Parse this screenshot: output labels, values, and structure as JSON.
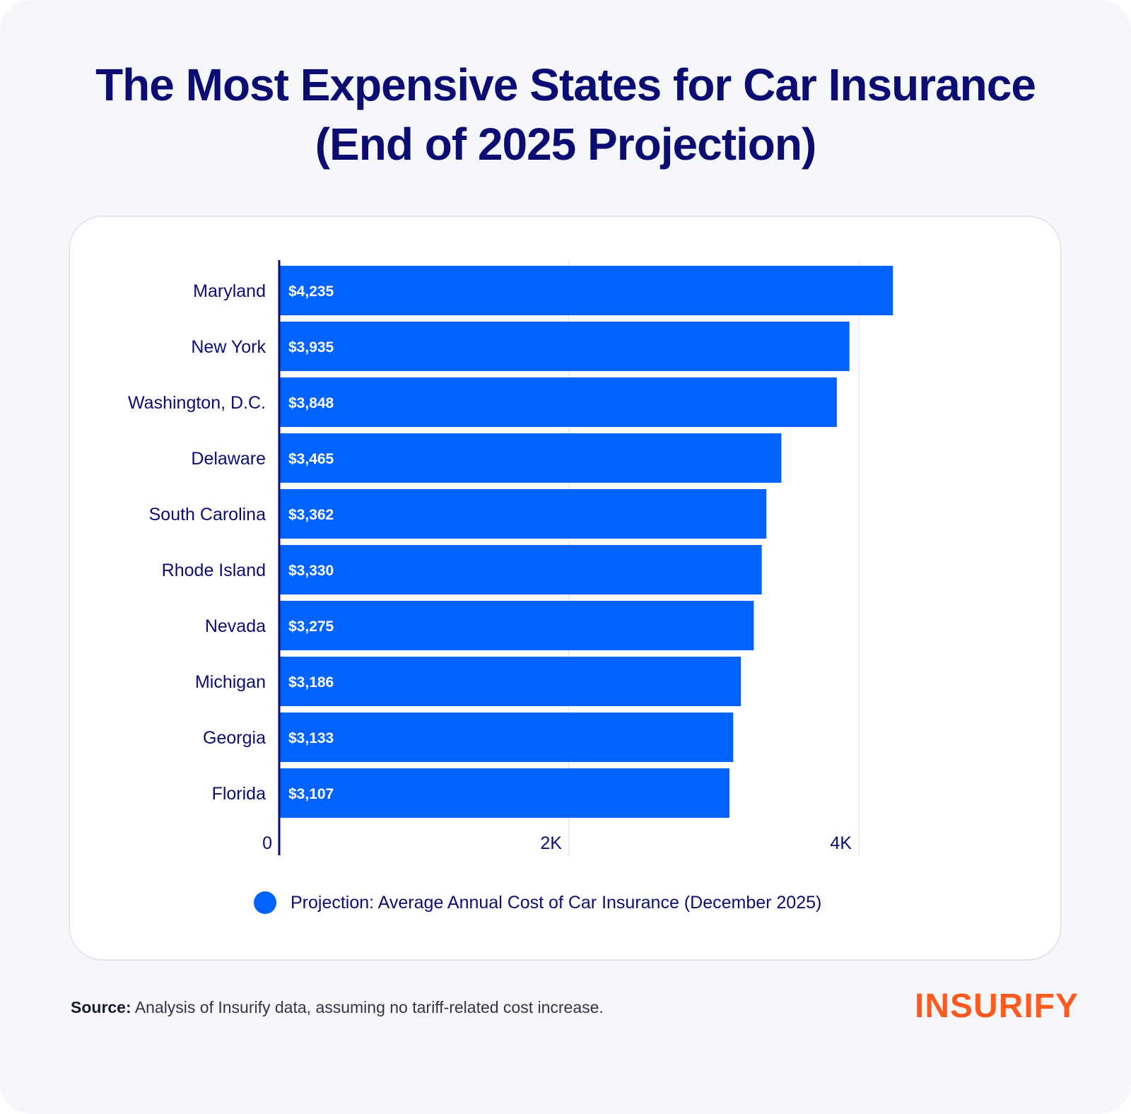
{
  "title": {
    "line1": "The Most Expensive States for Car Insurance",
    "line2": "(End of 2025 Projection)"
  },
  "chart_data": {
    "type": "bar",
    "orientation": "horizontal",
    "categories": [
      "Maryland",
      "New York",
      "Washington, D.C.",
      "Delaware",
      "South Carolina",
      "Rhode Island",
      "Nevada",
      "Michigan",
      "Georgia",
      "Florida"
    ],
    "series": [
      {
        "name": "Projection: Average Annual Cost of Car Insurance (December 2025)",
        "values": [
          4235,
          3935,
          3848,
          3465,
          3362,
          3330,
          3275,
          3186,
          3133,
          3107
        ],
        "data_labels": [
          "$4,235",
          "$3,935",
          "$3,848",
          "$3,465",
          "$3,362",
          "$3,330",
          "$3,275",
          "$3,186",
          "$3,133",
          "$3,107"
        ],
        "color": "#0062ff"
      }
    ],
    "xlim": [
      0,
      4300
    ],
    "ticks": [
      {
        "value": 0,
        "label": "0"
      },
      {
        "value": 2000,
        "label": "2K"
      },
      {
        "value": 4000,
        "label": "4K"
      }
    ],
    "grid": true,
    "legend_position": "bottom"
  },
  "source": {
    "label": "Source:",
    "text": "Analysis of Insurify data, assuming no tariff-related cost increase."
  },
  "brand": "INSURIFY",
  "colors": {
    "navy": "#0b0d73",
    "bar": "#0062ff",
    "brand": "#ff5a1f",
    "background": "#f6f7fb"
  }
}
